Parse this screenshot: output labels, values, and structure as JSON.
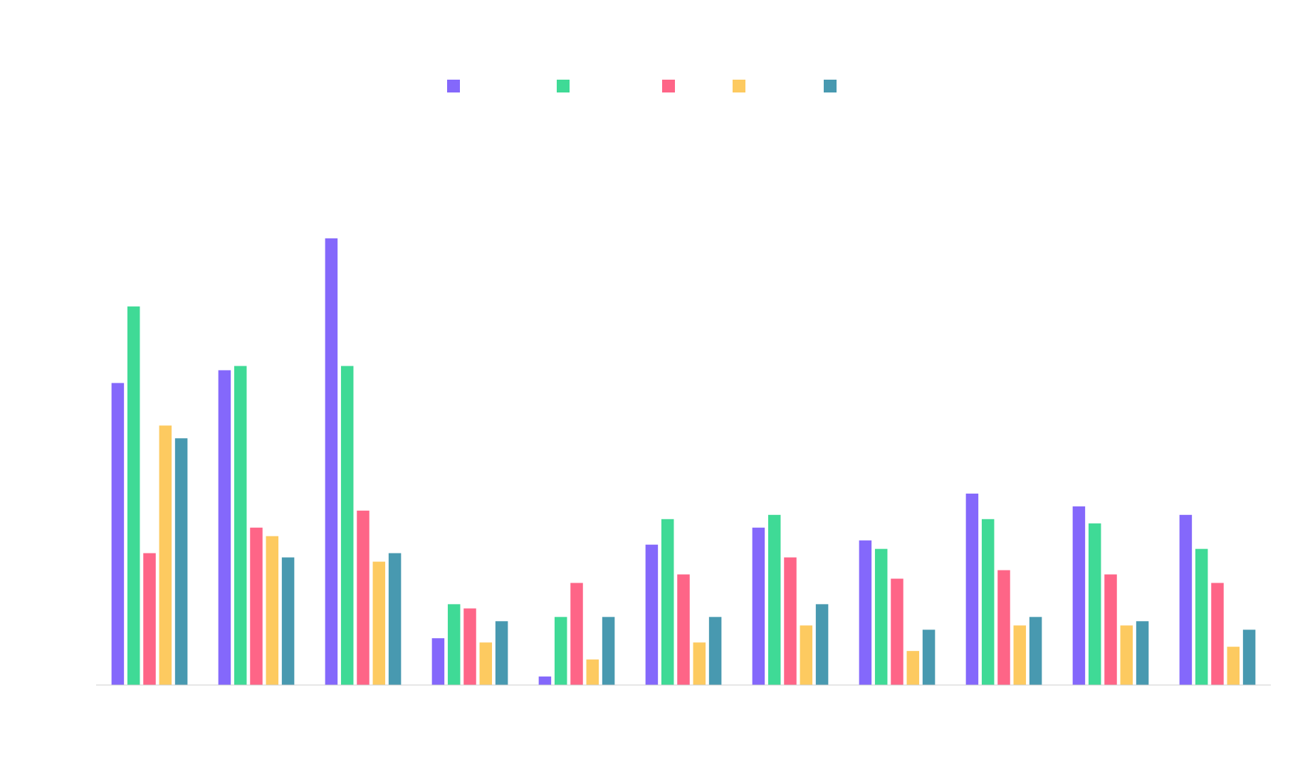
{
  "chart_data": {
    "type": "bar",
    "title": "",
    "xlabel": "",
    "ylabel": "",
    "categories": [
      "",
      "",
      "",
      "",
      "",
      "",
      "",
      "",
      "",
      "",
      ""
    ],
    "ylim": [
      0,
      118
    ],
    "grid": false,
    "legend_position": "top-center",
    "series": [
      {
        "color": "#8468fb",
        "values": [
          71,
          74,
          105,
          11,
          2,
          33,
          37,
          34,
          45,
          42,
          40
        ]
      },
      {
        "color": "#3fda96",
        "values": [
          89,
          75,
          75,
          19,
          16,
          39,
          40,
          32,
          39,
          38,
          32
        ]
      },
      {
        "color": "#fe6587",
        "values": [
          31,
          37,
          41,
          18,
          24,
          26,
          30,
          25,
          27,
          26,
          24
        ]
      },
      {
        "color": "#fdca60",
        "values": [
          61,
          35,
          29,
          10,
          6,
          10,
          14,
          8,
          14,
          14,
          9
        ]
      },
      {
        "color": "#4899b0",
        "values": [
          58,
          30,
          31,
          15,
          16,
          16,
          19,
          13,
          16,
          15,
          13
        ]
      }
    ]
  }
}
